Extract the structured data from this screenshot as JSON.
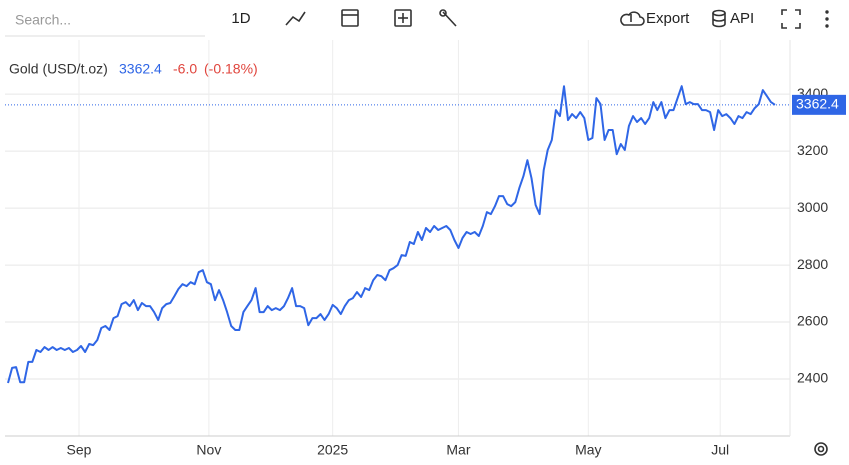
{
  "toolbar": {
    "search_placeholder": "Search...",
    "interval": "1D",
    "export": "Export",
    "api": "API"
  },
  "chart_data": {
    "type": "line",
    "legend": {
      "name": "Gold (USD/t.oz)",
      "change": "-6.0",
      "change_pct": "(-0.18%)"
    },
    "series": [
      {
        "name": "Gold (USD/t.oz)",
        "color": "#2f66e6",
        "values": [
          2386,
          2439,
          2442,
          2389,
          2389,
          2460,
          2460,
          2502,
          2495,
          2512,
          2502,
          2512,
          2502,
          2509,
          2502,
          2509,
          2495,
          2502,
          2516,
          2495,
          2523,
          2519,
          2537,
          2579,
          2586,
          2572,
          2614,
          2621,
          2663,
          2670,
          2656,
          2677,
          2642,
          2667,
          2656,
          2656,
          2635,
          2607,
          2649,
          2663,
          2667,
          2691,
          2716,
          2733,
          2726,
          2740,
          2733,
          2775,
          2782,
          2740,
          2733,
          2677,
          2712,
          2677,
          2635,
          2586,
          2572,
          2572,
          2635,
          2656,
          2677,
          2719,
          2635,
          2635,
          2656,
          2642,
          2649,
          2642,
          2656,
          2684,
          2719,
          2656,
          2656,
          2649,
          2589,
          2614,
          2614,
          2628,
          2607,
          2628,
          2660,
          2649,
          2628,
          2656,
          2677,
          2684,
          2705,
          2688,
          2719,
          2712,
          2747,
          2765,
          2761,
          2747,
          2782,
          2789,
          2800,
          2835,
          2832,
          2881,
          2874,
          2916,
          2888,
          2930,
          2916,
          2937,
          2923,
          2930,
          2937,
          2923,
          2888,
          2860,
          2895,
          2916,
          2909,
          2916,
          2902,
          2937,
          2986,
          2979,
          3007,
          3042,
          3042,
          3014,
          3007,
          3021,
          3070,
          3112,
          3168,
          3105,
          3011,
          2979,
          3133,
          3204,
          3239,
          3344,
          3323,
          3428,
          3309,
          3330,
          3316,
          3337,
          3316,
          3239,
          3246,
          3386,
          3365,
          3239,
          3274,
          3274,
          3189,
          3225,
          3204,
          3288,
          3323,
          3302,
          3316,
          3295,
          3316,
          3372,
          3344,
          3372,
          3316,
          3344,
          3344,
          3386,
          3428,
          3365,
          3372,
          3365,
          3365,
          3344,
          3344,
          3337,
          3274,
          3344,
          3323,
          3330,
          3316,
          3295,
          3323,
          3316,
          3337,
          3330,
          3351,
          3365,
          3414,
          3393,
          3372,
          3362.4
        ]
      }
    ],
    "xlim": [
      0,
      189
    ],
    "xticks": [
      {
        "value": 17.5,
        "label": "Sep"
      },
      {
        "value": 49.5,
        "label": "Nov"
      },
      {
        "value": 80,
        "label": "2025"
      },
      {
        "value": 111,
        "label": "Mar"
      },
      {
        "value": 143,
        "label": "May"
      },
      {
        "value": 175.5,
        "label": "Jul"
      }
    ],
    "ylim": [
      2200,
      3590
    ],
    "yticks": [
      2400,
      2600,
      2800,
      3000,
      3200,
      3400
    ],
    "grid": true
  }
}
